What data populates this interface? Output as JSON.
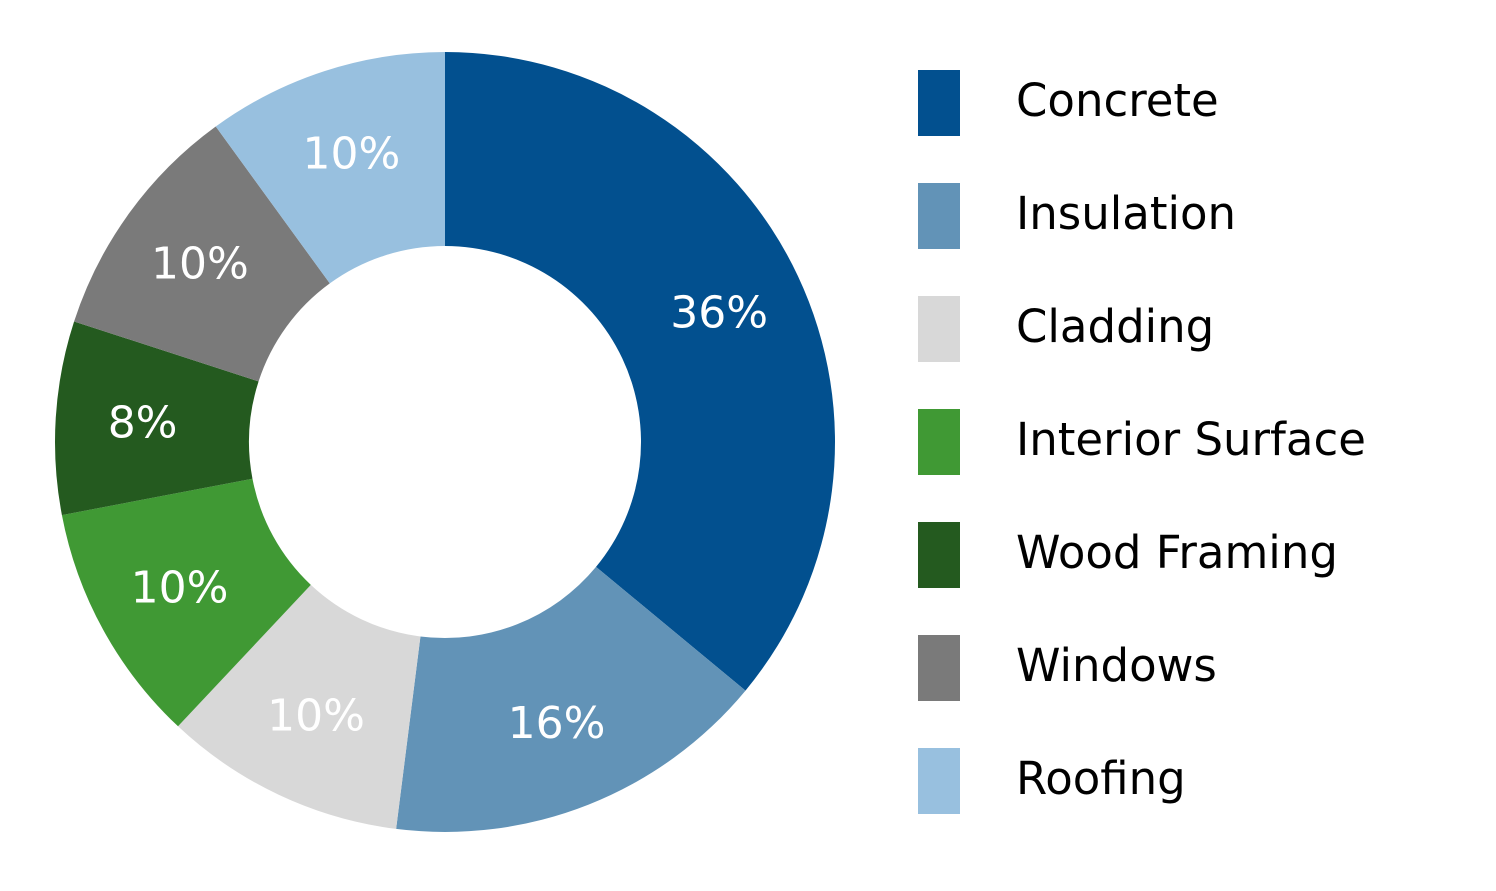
{
  "chart_data": {
    "type": "pie",
    "donut": true,
    "categories": [
      "Concrete",
      "Insulation",
      "Cladding",
      "Interior Surface",
      "Wood Framing",
      "Windows",
      "Roofing"
    ],
    "values": [
      36,
      16,
      10,
      10,
      8,
      10,
      10
    ],
    "labels": [
      "36%",
      "16%",
      "10%",
      "10%",
      "8%",
      "10%",
      "10%"
    ],
    "colors": [
      "#02508f",
      "#6293b7",
      "#d8d8d8",
      "#409934",
      "#245a1f",
      "#7a7a7a",
      "#98c0df"
    ],
    "title": "",
    "legend_position": "right",
    "start_angle_deg": 0,
    "direction": "clockwise"
  }
}
